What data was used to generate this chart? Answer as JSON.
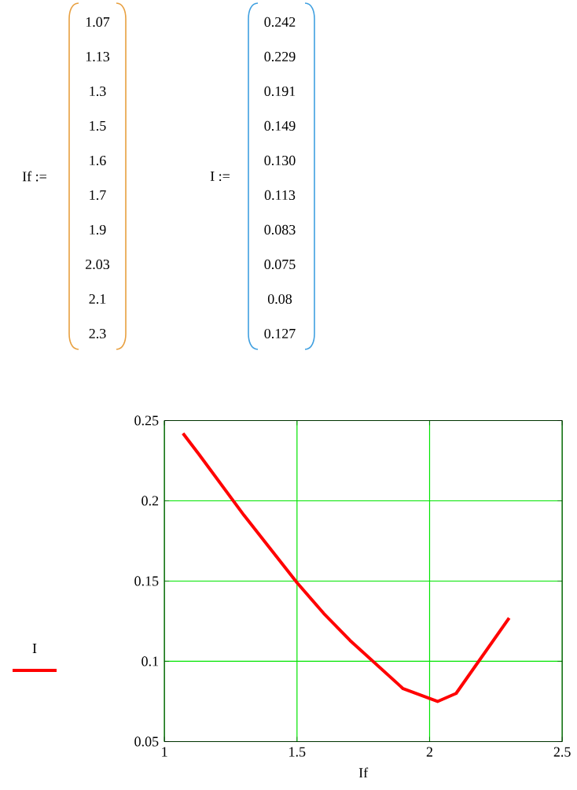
{
  "chart_data": [
    {
      "type": "other",
      "annotations": [
        "If :=",
        "1.07",
        "1.13",
        "1.3",
        "1.5",
        "1.6",
        "1.7",
        "1.9",
        "2.03",
        "2.1",
        "2.3",
        "I :=",
        "0.242",
        "0.229",
        "0.191",
        "0.149",
        "0.130",
        "0.113",
        "0.083",
        "0.075",
        "0.08",
        "0.127"
      ]
    },
    {
      "type": "line",
      "x": [
        1.07,
        1.13,
        1.3,
        1.5,
        1.6,
        1.7,
        1.9,
        2.03,
        2.1,
        2.3
      ],
      "series": [
        {
          "name": "I",
          "color": "#ff0000",
          "values": [
            0.242,
            0.229,
            0.191,
            0.149,
            0.13,
            0.113,
            0.083,
            0.075,
            0.08,
            0.127
          ]
        }
      ],
      "xlabel": "If",
      "xlim": [
        1,
        2.5
      ],
      "xticks": [
        1,
        1.5,
        2,
        2.5
      ],
      "ylim": [
        0.05,
        0.25
      ],
      "yticks": [
        0.05,
        0.1,
        0.15,
        0.2,
        0.25
      ],
      "grid": true,
      "legend": "left"
    }
  ]
}
